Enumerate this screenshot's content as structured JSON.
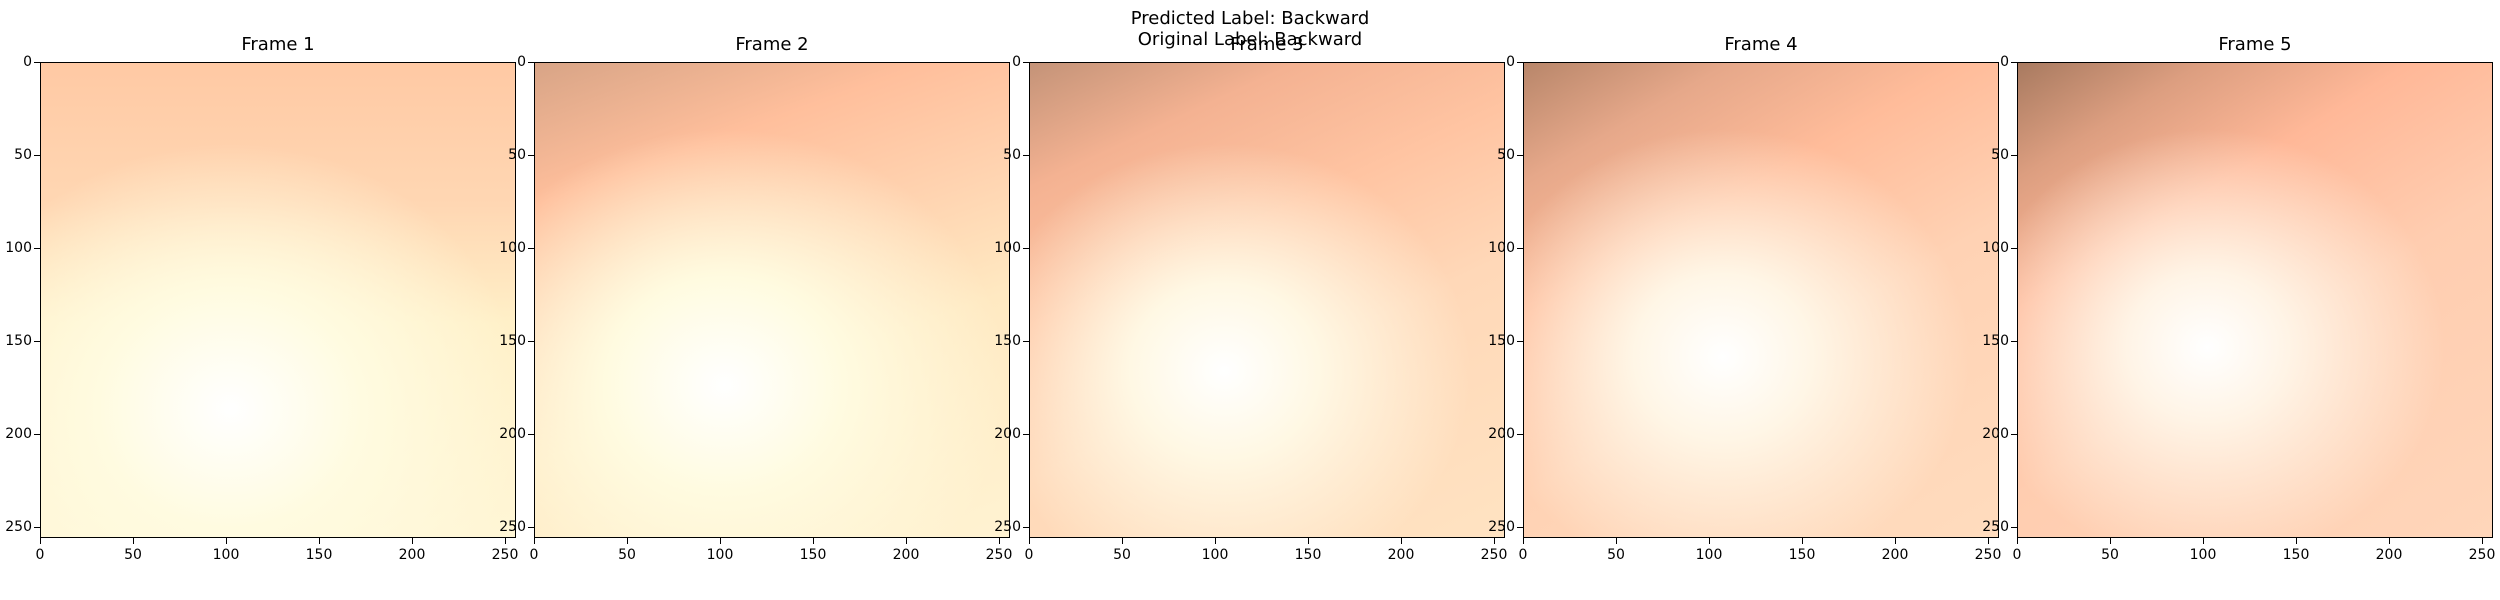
{
  "figure": {
    "predicted_label_text": "Predicted Label: Backward",
    "original_label_text": "Original Label: Backward"
  },
  "frames": [
    {
      "title": "Frame 1"
    },
    {
      "title": "Frame 2"
    },
    {
      "title": "Frame 3"
    },
    {
      "title": "Frame 4"
    },
    {
      "title": "Frame 5"
    }
  ],
  "axes": {
    "x_ticks": [
      "0",
      "50",
      "100",
      "150",
      "200",
      "250"
    ],
    "y_ticks": [
      "0",
      "50",
      "100",
      "150",
      "200",
      "250"
    ]
  },
  "colors": {
    "highlight": "#ffffff",
    "pale_yellow": "#fffbd8",
    "peach": "#ffc8a0",
    "salmon": "#ffb894",
    "shadow": "#b08266"
  }
}
